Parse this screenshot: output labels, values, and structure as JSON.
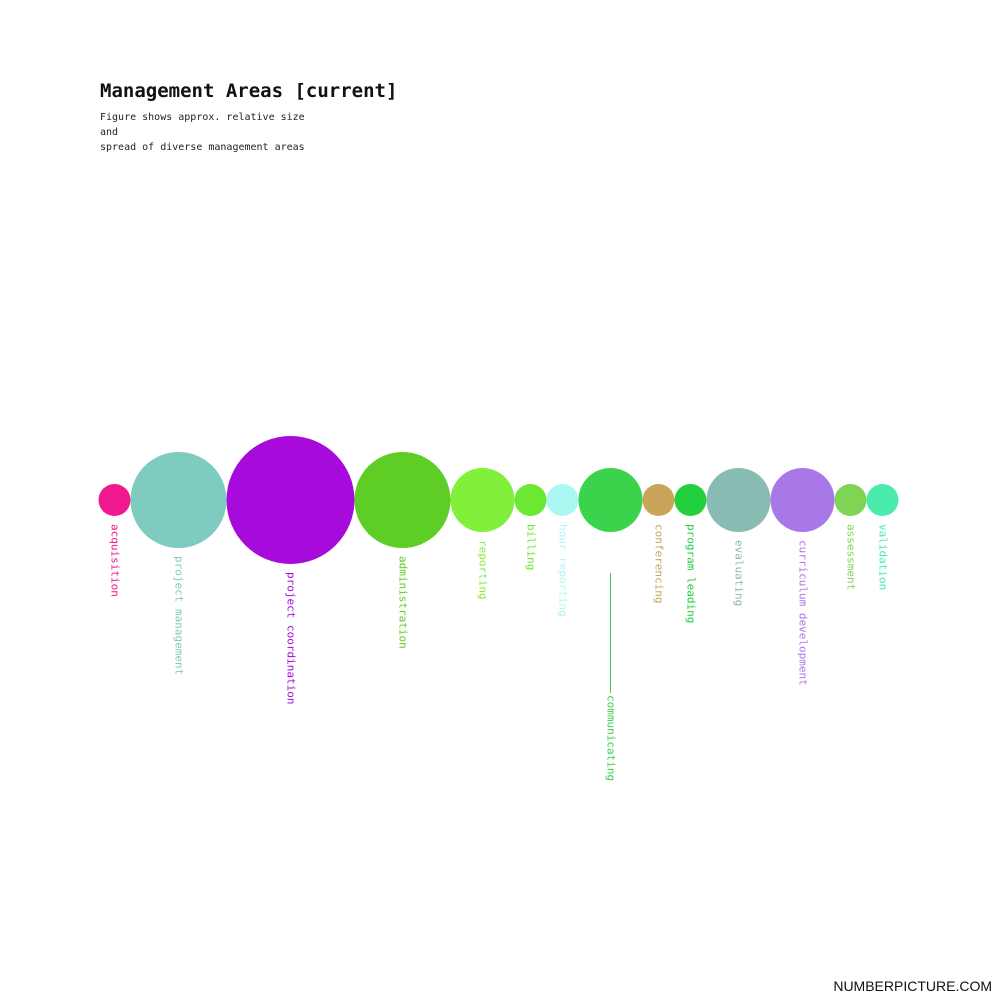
{
  "header": {
    "title": "Management Areas [current]",
    "subtitle_line1": "Figure shows approx. relative size and",
    "subtitle_line2": "spread of diverse management areas"
  },
  "footer": {
    "brand": "NUMBERPICTURE.COM"
  },
  "chart_data": {
    "type": "bubble",
    "title": "Management Areas [current]",
    "subtitle": "Figure shows approx. relative size and spread of diverse management areas",
    "legend": "none",
    "grid": false,
    "series": [
      {
        "label": "acquisition",
        "size": 1,
        "color": "#f0198f"
      },
      {
        "label": "project management",
        "size": 9,
        "color": "#7ecbbf"
      },
      {
        "label": "project coordination",
        "size": 16,
        "color": "#a70bdb"
      },
      {
        "label": "administration",
        "size": 9,
        "color": "#5ecd25"
      },
      {
        "label": "reporting",
        "size": 4,
        "color": "#80f03a"
      },
      {
        "label": "billing",
        "size": 1,
        "color": "#6ae832"
      },
      {
        "label": "hour reporting",
        "size": 1,
        "color": "#abf7f1"
      },
      {
        "label": "communicating",
        "size": 4,
        "color": "#3bd24c"
      },
      {
        "label": "conferencing",
        "size": 1,
        "color": "#c9a55a"
      },
      {
        "label": "program leading",
        "size": 1,
        "color": "#22cf3c"
      },
      {
        "label": "evaluating",
        "size": 4,
        "color": "#88bbb1"
      },
      {
        "label": "curriculum development",
        "size": 4,
        "color": "#a878e9"
      },
      {
        "label": "assessment",
        "size": 1,
        "color": "#80d454"
      },
      {
        "label": "validation",
        "size": 1,
        "color": "#4aebab"
      }
    ]
  }
}
